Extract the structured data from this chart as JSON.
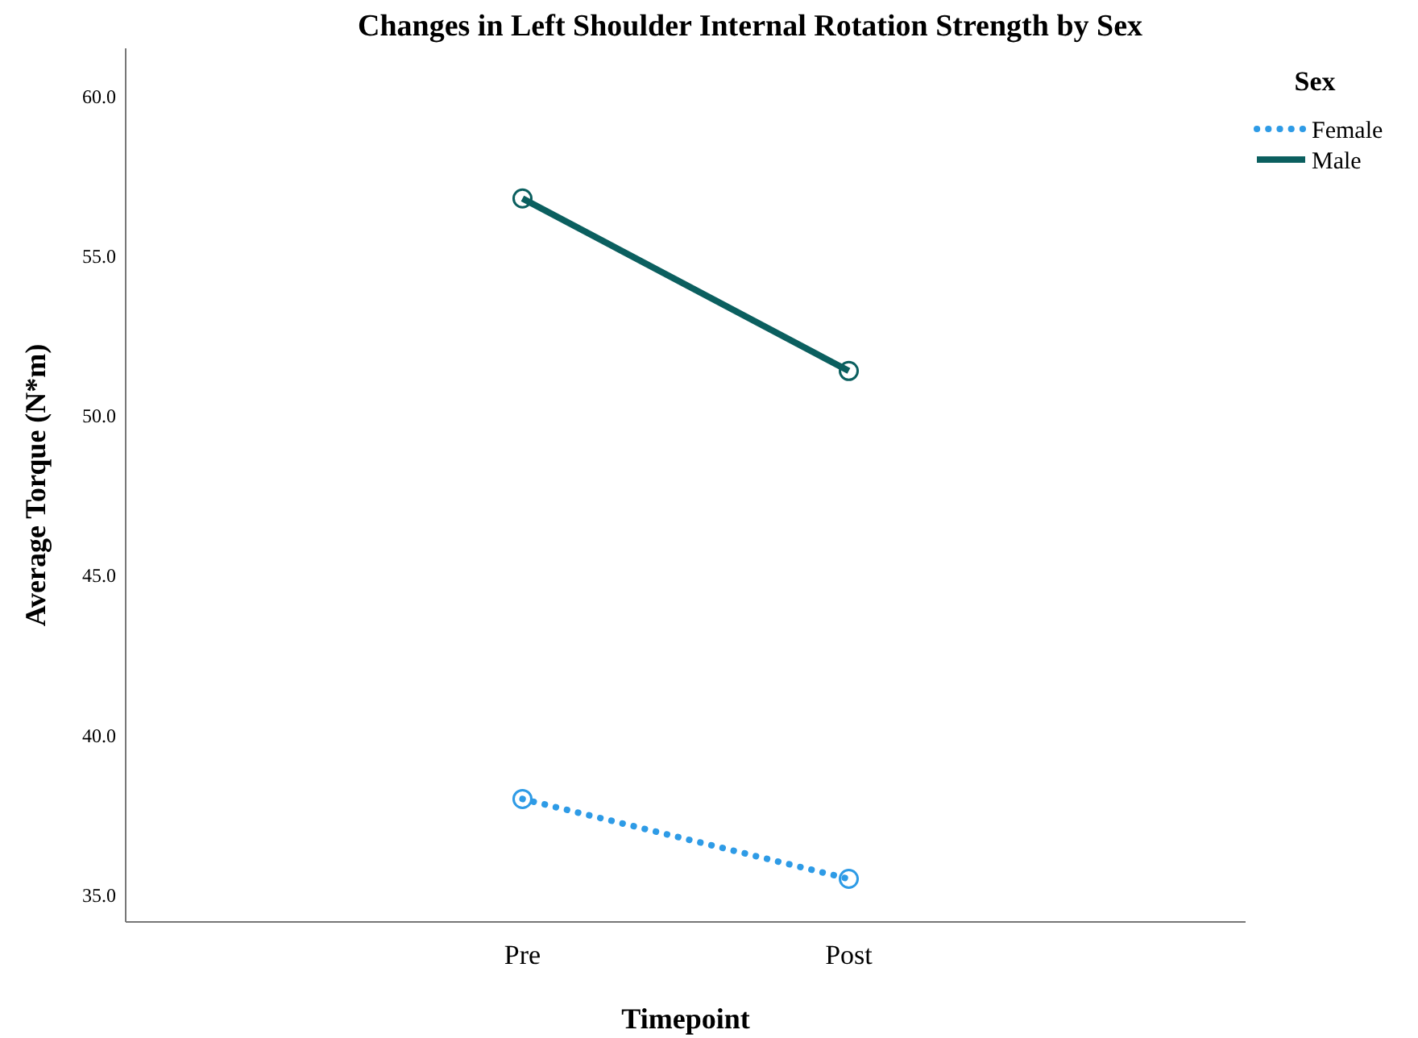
{
  "chart_data": {
    "type": "line",
    "title": "Changes in Left Shoulder Internal Rotation Strength by Sex",
    "xlabel": "Timepoint",
    "ylabel": "Average Torque (N*m)",
    "legend_title": "Sex",
    "categories": [
      "Pre",
      "Post"
    ],
    "ylim": [
      34.15,
      61.5
    ],
    "yticks": [
      {
        "value": 35,
        "label": "35.0"
      },
      {
        "value": 40,
        "label": "40.0"
      },
      {
        "value": 45,
        "label": "45.0"
      },
      {
        "value": 50,
        "label": "50.0"
      },
      {
        "value": 55,
        "label": "55.0"
      },
      {
        "value": 60,
        "label": "60.0"
      }
    ],
    "grid": false,
    "legend": "top right",
    "marker": "circle",
    "series": [
      {
        "name": "Female",
        "color": "#2e9be6",
        "values": [
          38.0,
          35.5
        ],
        "line_style": "dotted"
      },
      {
        "name": "Male",
        "color": "#0b5f5f",
        "values": [
          56.8,
          51.4
        ],
        "line_style": "solid"
      }
    ]
  }
}
